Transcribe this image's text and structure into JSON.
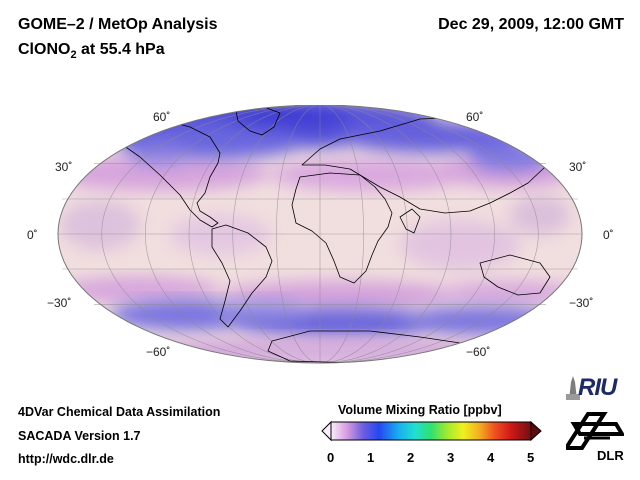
{
  "header": {
    "title": "GOME–2 / MetOp Analysis",
    "species_prefix": "ClONO",
    "species_sub": "2",
    "species_suffix": " at 55.4 hPa",
    "datetime": "Dec 29, 2009, 12:00 GMT"
  },
  "map": {
    "projection": "Mollweide",
    "latitude_labels": {
      "n60": "60˚",
      "n30": "30˚",
      "eq": "0˚",
      "s30": "−30˚",
      "s60": "−60˚"
    },
    "colors": {
      "background": "#f1dede",
      "low": "#4b47d8",
      "mid": "#d7a9df"
    }
  },
  "footer": {
    "line1": "4DVar Chemical Data Assimilation",
    "line2": "SACADA Version 1.7",
    "line3": "http://wdc.dlr.de"
  },
  "colorbar": {
    "title": "Volume Mixing Ratio [ppbv]",
    "ticks": [
      "0",
      "1",
      "2",
      "3",
      "4",
      "5"
    ],
    "min": 0,
    "max": 5
  },
  "logos": {
    "riu": "RIU",
    "dlr": "DLR"
  }
}
